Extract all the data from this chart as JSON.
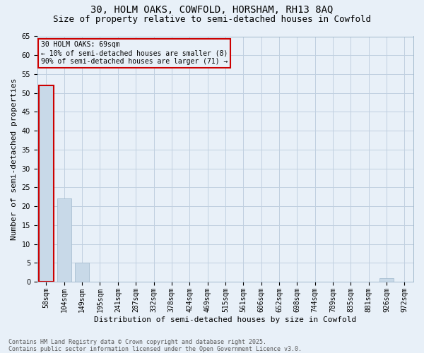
{
  "title_line1": "30, HOLM OAKS, COWFOLD, HORSHAM, RH13 8AQ",
  "title_line2": "Size of property relative to semi-detached houses in Cowfold",
  "xlabel": "Distribution of semi-detached houses by size in Cowfold",
  "ylabel": "Number of semi-detached properties",
  "categories": [
    "58sqm",
    "104sqm",
    "149sqm",
    "195sqm",
    "241sqm",
    "287sqm",
    "332sqm",
    "378sqm",
    "424sqm",
    "469sqm",
    "515sqm",
    "561sqm",
    "606sqm",
    "652sqm",
    "698sqm",
    "744sqm",
    "789sqm",
    "835sqm",
    "881sqm",
    "926sqm",
    "972sqm"
  ],
  "values": [
    52,
    22,
    5,
    0,
    0,
    0,
    0,
    0,
    0,
    0,
    0,
    0,
    0,
    0,
    0,
    0,
    0,
    0,
    0,
    1,
    0
  ],
  "bar_color": "#c8d9e8",
  "bar_edge_color": "#a0b8cc",
  "subject_bar_index": 0,
  "highlight_edge_color": "#cc0000",
  "annotation_text": "30 HOLM OAKS: 69sqm\n← 10% of semi-detached houses are smaller (8)\n90% of semi-detached houses are larger (71) →",
  "annotation_box_edge_color": "#cc0000",
  "ylim": [
    0,
    65
  ],
  "yticks": [
    0,
    5,
    10,
    15,
    20,
    25,
    30,
    35,
    40,
    45,
    50,
    55,
    60,
    65
  ],
  "grid_color": "#c0d0e0",
  "background_color": "#e8f0f8",
  "footer_line1": "Contains HM Land Registry data © Crown copyright and database right 2025.",
  "footer_line2": "Contains public sector information licensed under the Open Government Licence v3.0.",
  "title_fontsize": 10,
  "subtitle_fontsize": 9,
  "axis_label_fontsize": 8,
  "tick_fontsize": 7,
  "annotation_fontsize": 7,
  "footer_fontsize": 6
}
